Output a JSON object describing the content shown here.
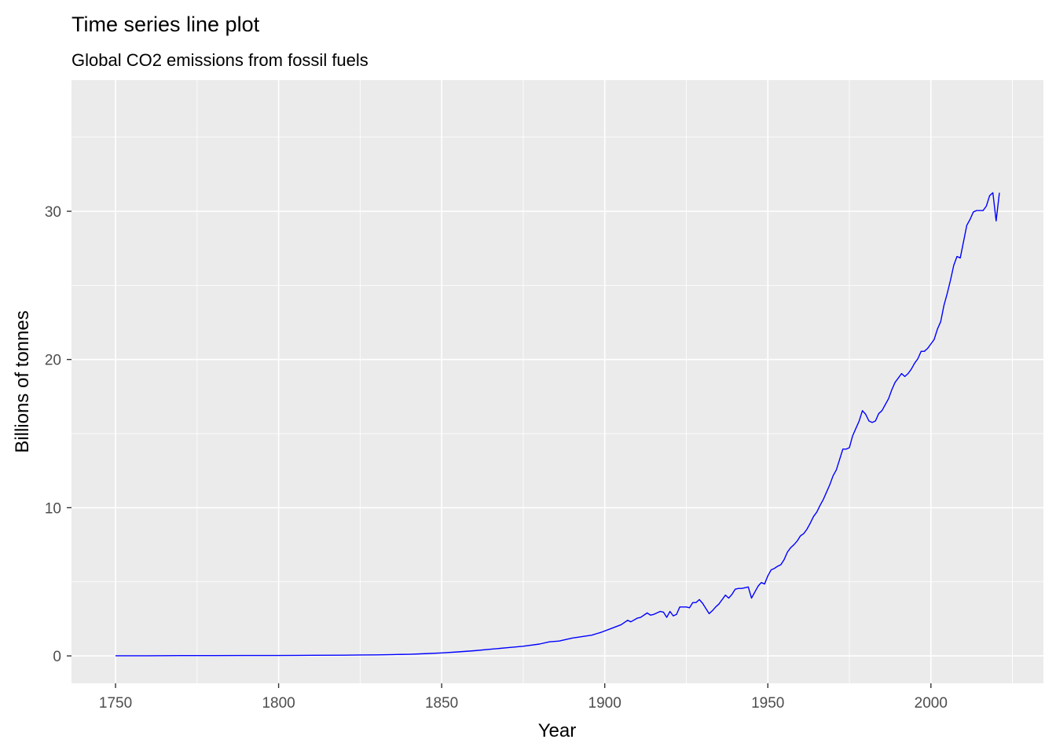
{
  "chart_data": {
    "type": "line",
    "title": "Time series line plot",
    "subtitle": "Global CO2 emissions from fossil fuels",
    "xlabel": "Year",
    "ylabel": "Billions of tonnes",
    "xlim": [
      1736.5,
      2034.5
    ],
    "ylim": [
      -1.85,
      38.85
    ],
    "x_ticks": [
      1750,
      1800,
      1850,
      1900,
      1950,
      2000
    ],
    "y_ticks": [
      0,
      10,
      20,
      30
    ],
    "grid": true,
    "legend": "none",
    "colors": {
      "line": "#0000ff",
      "panel": "#ebebeb",
      "grid": "#ffffff"
    },
    "series": [
      {
        "x": [
          1750,
          1760,
          1770,
          1780,
          1790,
          1800,
          1810,
          1820,
          1825,
          1830,
          1835,
          1840,
          1845,
          1850,
          1855,
          1860,
          1865,
          1870,
          1875,
          1880,
          1883,
          1886,
          1890,
          1893,
          1896,
          1899,
          1902,
          1905,
          1907,
          1908,
          1910,
          1911,
          1913,
          1914,
          1915,
          1917,
          1918,
          1919,
          1920,
          1921,
          1922,
          1923,
          1924,
          1925,
          1926,
          1927,
          1928,
          1929,
          1930,
          1931,
          1932,
          1933,
          1934,
          1935,
          1936,
          1937,
          1938,
          1939,
          1940,
          1941,
          1942,
          1943,
          1944,
          1945,
          1946,
          1947,
          1948,
          1949,
          1950,
          1951,
          1952,
          1953,
          1954,
          1955,
          1956,
          1957,
          1958,
          1959,
          1960,
          1961,
          1962,
          1963,
          1964,
          1965,
          1966,
          1967,
          1968,
          1969,
          1970,
          1971,
          1972,
          1973,
          1974,
          1975,
          1976,
          1977,
          1978,
          1979,
          1980,
          1981,
          1982,
          1983,
          1984,
          1985,
          1986,
          1987,
          1988,
          1989,
          1990,
          1991,
          1992,
          1993,
          1994,
          1995,
          1996,
          1997,
          1998,
          1999,
          2000,
          2001,
          2002,
          2003,
          2004,
          2005,
          2006,
          2007,
          2008,
          2009,
          2010,
          2011,
          2012,
          2013,
          2014,
          2015,
          2016,
          2017,
          2018,
          2019,
          2020,
          2021
        ],
        "y": [
          0.01,
          0.01,
          0.02,
          0.02,
          0.03,
          0.03,
          0.04,
          0.05,
          0.06,
          0.07,
          0.09,
          0.11,
          0.15,
          0.2,
          0.27,
          0.35,
          0.45,
          0.55,
          0.65,
          0.8,
          0.95,
          1.0,
          1.2,
          1.3,
          1.4,
          1.6,
          1.85,
          2.1,
          2.4,
          2.3,
          2.55,
          2.6,
          2.9,
          2.75,
          2.8,
          3.0,
          2.95,
          2.6,
          3.0,
          2.7,
          2.8,
          3.3,
          3.3,
          3.3,
          3.25,
          3.6,
          3.6,
          3.8,
          3.55,
          3.2,
          2.85,
          3.05,
          3.3,
          3.5,
          3.8,
          4.1,
          3.9,
          4.15,
          4.5,
          4.55,
          4.55,
          4.6,
          4.65,
          3.9,
          4.3,
          4.7,
          4.95,
          4.85,
          5.4,
          5.8,
          5.9,
          6.05,
          6.15,
          6.5,
          7.0,
          7.3,
          7.5,
          7.75,
          8.1,
          8.25,
          8.55,
          8.95,
          9.4,
          9.7,
          10.15,
          10.55,
          11.05,
          11.55,
          12.15,
          12.55,
          13.25,
          13.95,
          13.95,
          14.05,
          14.85,
          15.35,
          15.85,
          16.55,
          16.3,
          15.85,
          15.75,
          15.85,
          16.35,
          16.55,
          16.95,
          17.35,
          17.95,
          18.45,
          18.75,
          19.05,
          18.85,
          19.05,
          19.35,
          19.75,
          20.05,
          20.55,
          20.55,
          20.75,
          21.05,
          21.35,
          22.05,
          22.55,
          23.65,
          24.45,
          25.35,
          26.35,
          26.95,
          26.85,
          27.95,
          29.05,
          29.45,
          29.95,
          30.05,
          30.05,
          30.05,
          30.35,
          31.05,
          31.25,
          29.35,
          31.25
        ]
      }
    ]
  }
}
